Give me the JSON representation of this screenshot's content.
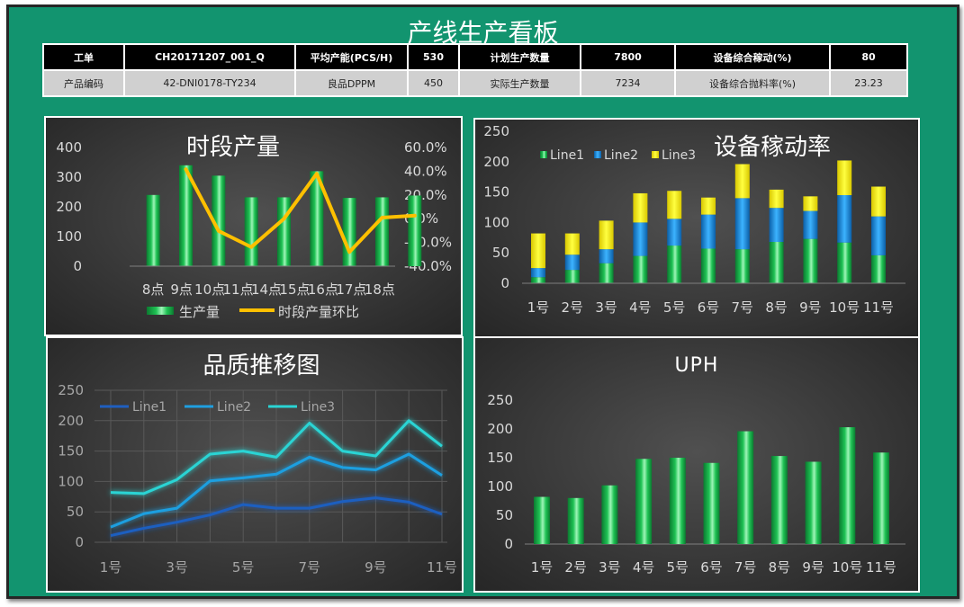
{
  "page": {
    "title": "产线生产看板"
  },
  "info_table": {
    "row1": [
      "工单",
      "CH20171207_001_Q",
      "平均产能(PCS/H)",
      "530",
      "计划生产数量",
      "7800",
      "设备综合稼动(%)",
      "80"
    ],
    "row2": [
      "产品编码",
      "42-DNI0178-TY234",
      "良品DPPM",
      "450",
      "实际生产数量",
      "7234",
      "设备综合抛料率(%)",
      "23.23"
    ]
  },
  "colors": {
    "green": "#1fc254",
    "orange": "#ffc000",
    "blue": "#1a8fe0",
    "yellow": "#ffff00",
    "line1": "#1f5fc0",
    "line2": "#1f9fe0",
    "line3": "#2ad4d4"
  },
  "chart_data": [
    {
      "id": "hourly",
      "type": "bar",
      "title": "时段产量",
      "categories": [
        "8点",
        "9点",
        "10点",
        "11点",
        "14点",
        "15点",
        "16点",
        "17点",
        "18点"
      ],
      "y_ticks": [
        "0",
        "100",
        "200",
        "300",
        "400"
      ],
      "y2_ticks": [
        "-40.0%",
        "-20.0%",
        "0.0%",
        "20.0%",
        "40.0%",
        "60.0%"
      ],
      "ylim": [
        0,
        400
      ],
      "y2lim": [
        -40,
        60
      ],
      "series": [
        {
          "name": "生产量",
          "type": "bar",
          "values": [
            240,
            340,
            305,
            232,
            232,
            320,
            230,
            232,
            238
          ]
        },
        {
          "name": "时段产量环比",
          "type": "line",
          "axis": "secondary",
          "values": [
            null,
            41.7,
            -10.3,
            -23.9,
            0.0,
            37.9,
            -28.1,
            0.9,
            2.6
          ]
        }
      ],
      "legend": "bottom"
    },
    {
      "id": "utilization",
      "type": "bar",
      "stacked": true,
      "title": "设备稼动率",
      "categories": [
        "1号",
        "2号",
        "3号",
        "4号",
        "5号",
        "6号",
        "7号",
        "8号",
        "9号",
        "10号",
        "11号"
      ],
      "y_ticks": [
        "0",
        "50",
        "100",
        "150",
        "200",
        "250"
      ],
      "ylim": [
        0,
        250
      ],
      "series": [
        {
          "name": "Line1",
          "values": [
            10,
            22,
            33,
            45,
            62,
            57,
            56,
            68,
            73,
            67,
            46
          ]
        },
        {
          "name": "Line2",
          "values": [
            15,
            25,
            23,
            55,
            44,
            56,
            84,
            56,
            46,
            78,
            64
          ]
        },
        {
          "name": "Line3",
          "values": [
            57,
            35,
            47,
            48,
            46,
            28,
            56,
            30,
            24,
            57,
            49
          ]
        }
      ],
      "legend": "top-left"
    },
    {
      "id": "quality",
      "type": "line",
      "title": "品质推移图",
      "categories": [
        "1号",
        "2号",
        "3号",
        "4号",
        "5号",
        "6号",
        "7号",
        "8号",
        "9号",
        "10号",
        "11号"
      ],
      "x_ticks": [
        "1号",
        "",
        "3号",
        "",
        "5号",
        "",
        "7号",
        "",
        "9号",
        "",
        "11号"
      ],
      "y_ticks": [
        "0",
        "50",
        "100",
        "150",
        "200",
        "250"
      ],
      "ylim": [
        0,
        250
      ],
      "series": [
        {
          "name": "Line1",
          "values": [
            11,
            23,
            33,
            45,
            62,
            56,
            56,
            67,
            73,
            66,
            46
          ]
        },
        {
          "name": "Line2",
          "values": [
            25,
            47,
            56,
            101,
            106,
            112,
            140,
            123,
            119,
            145,
            110
          ]
        },
        {
          "name": "Line3",
          "values": [
            82,
            80,
            103,
            145,
            150,
            140,
            196,
            150,
            142,
            200,
            158
          ]
        }
      ],
      "legend": "top-left"
    },
    {
      "id": "uph",
      "type": "bar",
      "title": "UPH",
      "categories": [
        "1号",
        "2号",
        "3号",
        "4号",
        "5号",
        "6号",
        "7号",
        "8号",
        "9号",
        "10号",
        "11号"
      ],
      "y_ticks": [
        "0",
        "50",
        "100",
        "150",
        "200",
        "250"
      ],
      "ylim": [
        0,
        250
      ],
      "series": [
        {
          "values": [
            82,
            80,
            102,
            148,
            150,
            141,
            196,
            153,
            143,
            203,
            159
          ]
        }
      ]
    }
  ]
}
